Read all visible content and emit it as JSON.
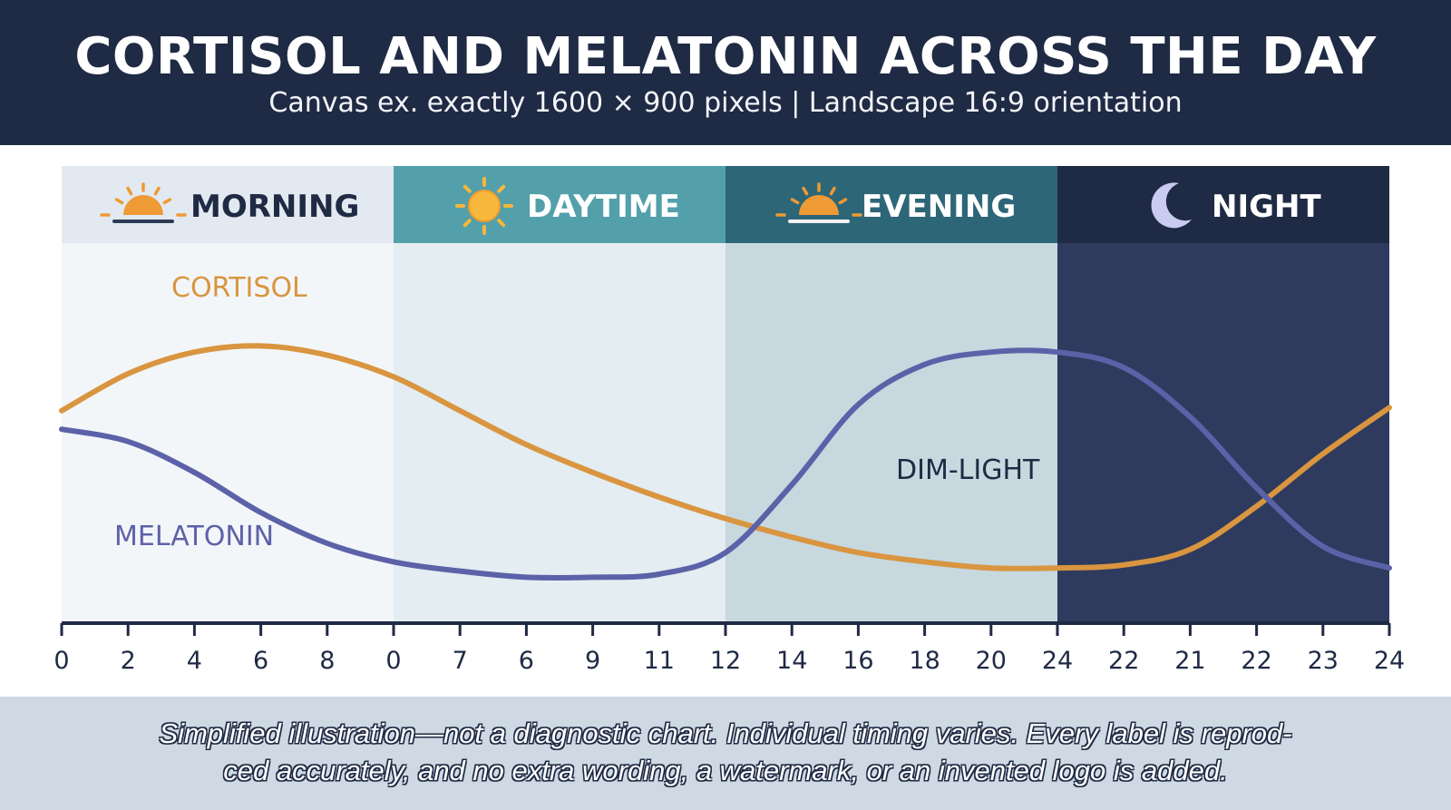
{
  "header": {
    "title": "CORTISOL AND MELATONIN ACROSS THE DAY",
    "subtitle": "Canvas ex. exactly 1600 × 900 pixels | Landscape 16:9 orientation"
  },
  "bands": [
    {
      "label": "MORNING",
      "icon": "sunrise-icon",
      "header_color": "#e2e9f0",
      "body_color": "#f3f6f9",
      "text_color": "#1f2a44"
    },
    {
      "label": "DAYTIME",
      "icon": "sun-icon",
      "header_color": "#53a0aa",
      "body_color": "#e3edf2",
      "text_color": "#ffffff"
    },
    {
      "label": "EVENING",
      "icon": "sunset-icon",
      "header_color": "#2d6677",
      "body_color": "#c7d8df",
      "text_color": "#ffffff"
    },
    {
      "label": "NIGHT",
      "icon": "moon-icon",
      "header_color": "#1f2a44",
      "body_color": "#2e3b5e",
      "text_color": "#ffffff"
    }
  ],
  "chart_data": {
    "type": "line",
    "title": "CORTISOL AND MELATONIN ACROSS THE DAY",
    "x_tick_labels": [
      "0",
      "2",
      "4",
      "6",
      "8",
      "0",
      "7",
      "6",
      "9",
      "11",
      "12",
      "14",
      "16",
      "18",
      "20",
      "24",
      "22",
      "21",
      "22",
      "23",
      "24"
    ],
    "ylim": [
      0,
      100
    ],
    "grid": false,
    "legend": "none",
    "series": [
      {
        "name": "CORTISOL",
        "color": "#d9953f",
        "values": [
          58,
          70,
          77,
          79,
          76,
          69,
          58,
          47,
          38,
          30,
          23,
          17,
          12,
          9,
          7,
          7,
          8,
          13,
          27,
          44,
          59
        ]
      },
      {
        "name": "MELATONIN",
        "color": "#5c62a8",
        "values": [
          52,
          48,
          38,
          25,
          15,
          9,
          6,
          4,
          4,
          5,
          12,
          34,
          60,
          73,
          77,
          77,
          72,
          56,
          33,
          14,
          7
        ]
      }
    ],
    "annotations": [
      {
        "text": "CORTISOL",
        "series": "CORTISOL"
      },
      {
        "text": "MELATONIN",
        "series": "MELATONIN"
      },
      {
        "text": "DIM-LIGHT"
      }
    ]
  },
  "footer": {
    "text": "Simplified illustration—not a diagnostic chart. Individual timing varies. Every label is reprod-ced accurately, and no extra wording, a watermark, or an invented logo is added."
  }
}
